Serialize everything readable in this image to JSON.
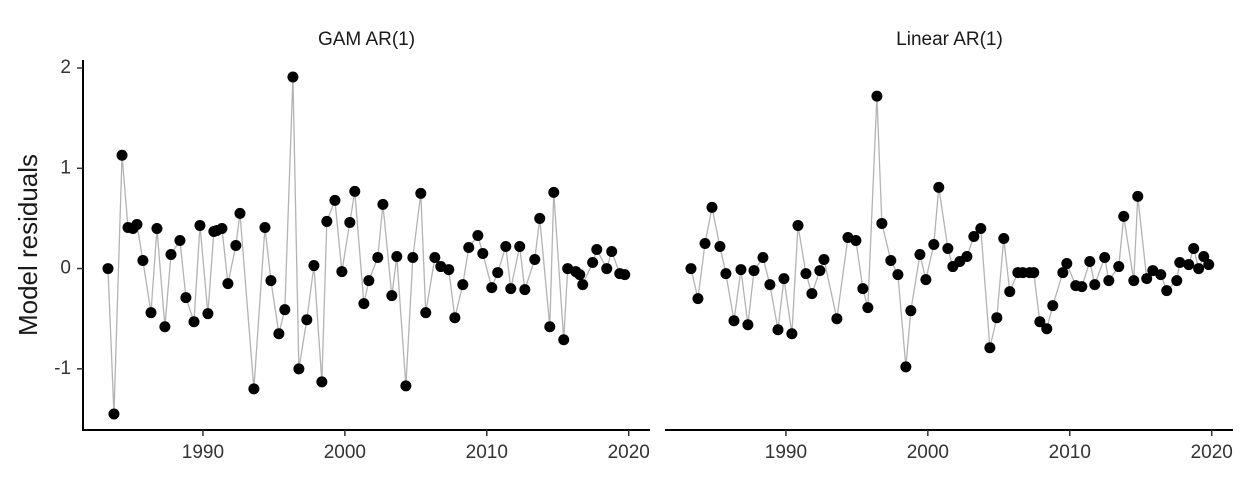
{
  "chart_data": [
    {
      "type": "line",
      "title": "GAM AR(1)",
      "ylabel": "Model residuals",
      "line_color": "#b3b3b3",
      "marker_color": "#000000",
      "xlim": [
        1981.55,
        2021.5
      ],
      "ylim": [
        -1.61,
        2.08
      ],
      "xticks": [
        1990,
        2000,
        2010,
        2020
      ],
      "yticks": [
        -1,
        0,
        1,
        2
      ],
      "y_axis_line": true,
      "x": [
        1983.31,
        1983.73,
        1984.3,
        1984.72,
        1985.07,
        1985.35,
        1985.77,
        1986.34,
        1986.76,
        1987.32,
        1987.75,
        1988.38,
        1988.8,
        1989.37,
        1989.79,
        1990.35,
        1990.77,
        1990.99,
        1991.34,
        1991.76,
        1992.32,
        1992.61,
        1993.59,
        1994.37,
        1994.79,
        1995.35,
        1995.77,
        1996.34,
        1996.76,
        1997.32,
        1997.82,
        1998.38,
        1998.73,
        1999.3,
        1999.79,
        2000.35,
        2000.7,
        2001.34,
        2001.69,
        2002.32,
        2002.68,
        2003.31,
        2003.66,
        2004.3,
        2004.79,
        2005.35,
        2005.7,
        2006.34,
        2006.76,
        2007.32,
        2007.75,
        2008.31,
        2008.73,
        2009.37,
        2009.72,
        2010.35,
        2010.77,
        2011.34,
        2011.69,
        2012.32,
        2012.68,
        2013.38,
        2013.73,
        2014.44,
        2014.72,
        2015.42,
        2015.7,
        2016.27,
        2016.55,
        2016.76,
        2017.46,
        2017.75,
        2018.45,
        2018.8,
        2019.37,
        2019.72
      ],
      "values": [
        0,
        -1.45,
        1.13,
        0.41,
        0.4,
        0.44,
        0.08,
        -0.44,
        0.4,
        -0.58,
        0.14,
        0.28,
        -0.29,
        -0.53,
        0.43,
        -0.45,
        0.37,
        0.38,
        0.4,
        -0.15,
        0.23,
        0.55,
        -1.2,
        0.41,
        -0.12,
        -0.65,
        -0.41,
        1.91,
        -1.0,
        -0.51,
        0.03,
        -1.13,
        0.47,
        0.68,
        -0.03,
        0.46,
        0.77,
        -0.35,
        -0.12,
        0.11,
        0.64,
        -0.27,
        0.12,
        -1.17,
        0.11,
        0.75,
        -0.44,
        0.11,
        0.02,
        -0.01,
        -0.49,
        -0.16,
        0.21,
        0.33,
        0.15,
        -0.19,
        -0.04,
        0.22,
        -0.2,
        0.22,
        -0.21,
        0.09,
        0.5,
        -0.58,
        0.76,
        -0.71,
        0.0,
        -0.03,
        -0.06,
        -0.16,
        0.06,
        0.19,
        0.0,
        0.17,
        -0.05,
        -0.06
      ]
    },
    {
      "type": "line",
      "title": "Linear AR(1)",
      "line_color": "#b3b3b3",
      "marker_color": "#000000",
      "xlim": [
        1981.55,
        2021.5
      ],
      "ylim": [
        -1.61,
        2.08
      ],
      "xticks": [
        1990,
        2000,
        2010,
        2020
      ],
      "y_axis_line": false,
      "x": [
        1983.31,
        1983.8,
        1984.3,
        1984.79,
        1985.35,
        1985.77,
        1986.34,
        1986.83,
        1987.32,
        1987.75,
        1988.38,
        1988.87,
        1989.44,
        1989.86,
        1990.42,
        1990.85,
        1991.41,
        1991.83,
        1992.39,
        1992.68,
        1993.59,
        1994.37,
        1994.93,
        1995.42,
        1995.77,
        1996.41,
        1996.76,
        1997.39,
        1997.89,
        1998.45,
        1998.8,
        1999.44,
        1999.86,
        2000.42,
        2000.77,
        2001.41,
        2001.76,
        2002.25,
        2002.75,
        2003.24,
        2003.73,
        2004.37,
        2004.86,
        2005.35,
        2005.77,
        2006.34,
        2006.69,
        2007.18,
        2007.46,
        2007.89,
        2008.38,
        2008.8,
        2009.51,
        2009.79,
        2010.42,
        2010.85,
        2011.41,
        2011.76,
        2012.46,
        2012.75,
        2013.45,
        2013.8,
        2014.51,
        2014.79,
        2015.42,
        2015.85,
        2016.41,
        2016.83,
        2017.54,
        2017.75,
        2018.38,
        2018.73,
        2019.08,
        2019.44,
        2019.79
      ],
      "values": [
        0,
        -0.3,
        0.25,
        0.61,
        0.22,
        -0.05,
        -0.52,
        -0.01,
        -0.56,
        -0.02,
        0.11,
        -0.16,
        -0.61,
        -0.1,
        -0.65,
        0.43,
        -0.05,
        -0.25,
        -0.02,
        0.09,
        -0.5,
        0.31,
        0.28,
        -0.2,
        -0.39,
        1.72,
        0.45,
        0.08,
        -0.06,
        -0.98,
        -0.42,
        0.14,
        -0.11,
        0.24,
        0.81,
        0.2,
        0.02,
        0.07,
        0.12,
        0.32,
        0.4,
        -0.79,
        -0.49,
        0.3,
        -0.23,
        -0.04,
        -0.04,
        -0.04,
        -0.04,
        -0.53,
        -0.6,
        -0.37,
        -0.04,
        0.05,
        -0.17,
        -0.18,
        0.07,
        -0.16,
        0.11,
        -0.12,
        0.02,
        0.52,
        -0.12,
        0.72,
        -0.1,
        -0.02,
        -0.06,
        -0.22,
        -0.12,
        0.06,
        0.04,
        0.2,
        0.0,
        0.12,
        0.04
      ]
    }
  ]
}
